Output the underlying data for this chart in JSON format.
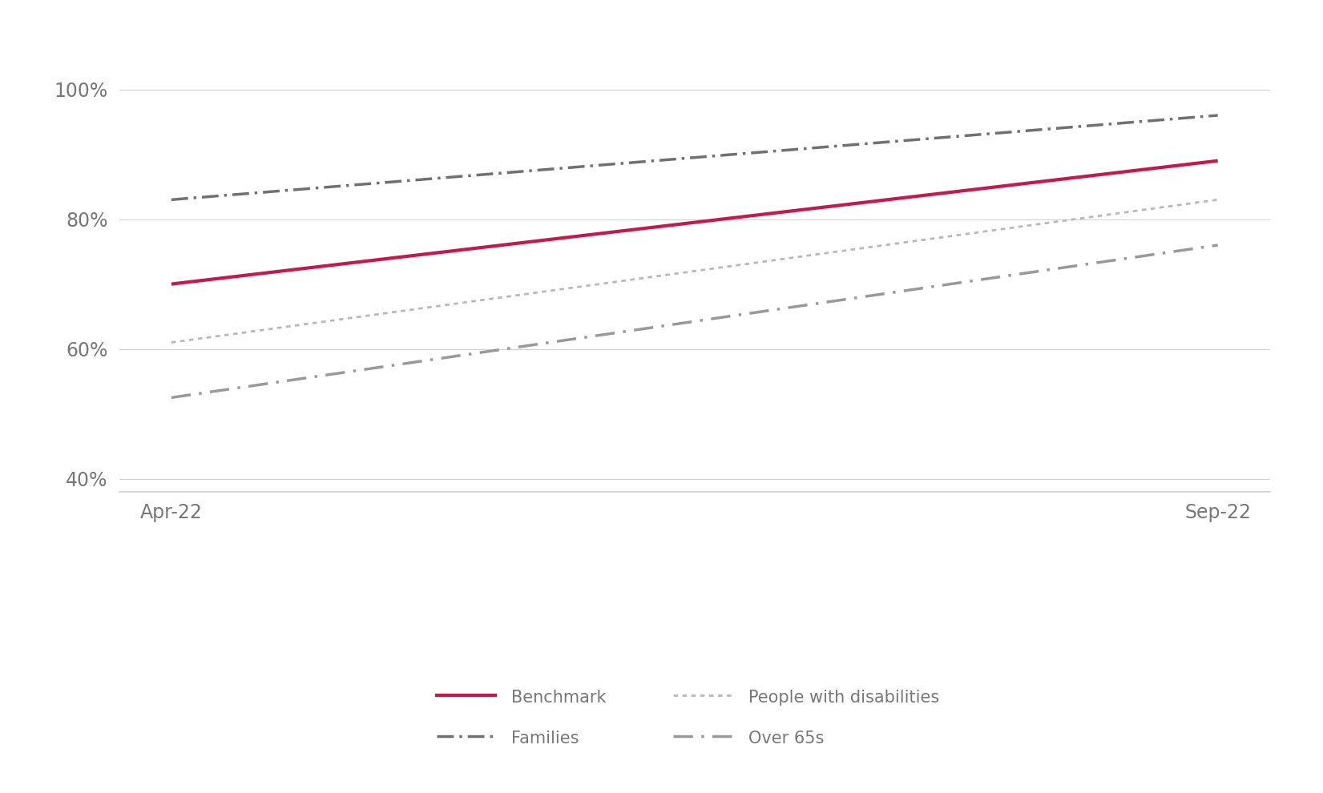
{
  "x_labels": [
    "Apr-22",
    "Sep-22"
  ],
  "x_values": [
    0,
    1
  ],
  "series": [
    {
      "name": "Benchmark",
      "values": [
        0.7,
        0.89
      ],
      "color": "#c8174a",
      "linewidth": 3.0
    },
    {
      "name": "Families",
      "values": [
        0.83,
        0.96
      ],
      "color": "#707070",
      "linewidth": 2.5
    },
    {
      "name": "People with disabilities",
      "values": [
        0.61,
        0.83
      ],
      "color": "#b8b8b8",
      "linewidth": 2.0
    },
    {
      "name": "Over 65s",
      "values": [
        0.525,
        0.76
      ],
      "color": "#999999",
      "linewidth": 2.5
    }
  ],
  "ylim": [
    0.38,
    1.04
  ],
  "yticks": [
    0.4,
    0.6,
    0.8,
    1.0
  ],
  "ytick_labels": [
    "40%",
    "60%",
    "80%",
    "100%"
  ],
  "background_color": "#ffffff",
  "legend_fontsize": 15,
  "tick_fontsize": 17,
  "grid_color": "#d0d0d0",
  "spine_color": "#d0d0d0"
}
